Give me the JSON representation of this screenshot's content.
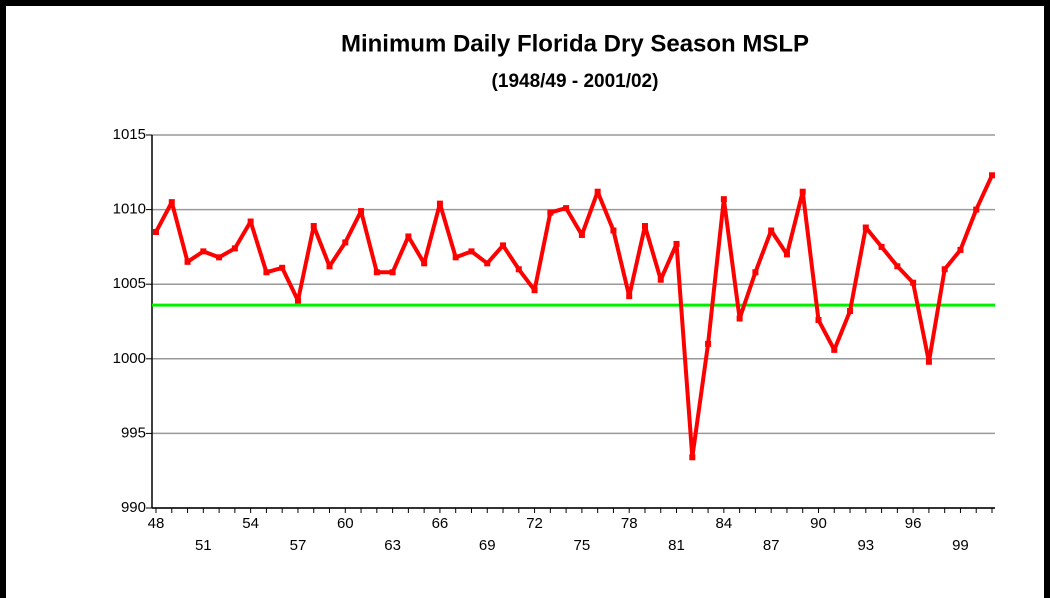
{
  "chart_data": {
    "type": "line",
    "title": "Minimum Daily Florida Dry Season MSLP",
    "subtitle": "(1948/49 - 2001/02)",
    "categories": [
      "48",
      null,
      null,
      "51",
      null,
      null,
      "54",
      null,
      null,
      "57",
      null,
      null,
      "60",
      null,
      null,
      "63",
      null,
      null,
      "66",
      null,
      null,
      "69",
      null,
      null,
      "72",
      null,
      null,
      "75",
      null,
      null,
      "78",
      null,
      null,
      "81",
      null,
      null,
      "84",
      null,
      null,
      "87",
      null,
      null,
      "90",
      null,
      null,
      "93",
      null,
      null,
      "96",
      null,
      null,
      "99",
      null,
      null
    ],
    "series": [
      {
        "color": "#ff0000",
        "values": [
          1008.5,
          1010.5,
          1006.5,
          1007.2,
          1006.8,
          1007.4,
          1009.2,
          1005.8,
          1006.1,
          1003.9,
          1008.9,
          1006.2,
          1007.8,
          1009.9,
          1005.8,
          1005.8,
          1008.2,
          1006.4,
          1010.4,
          1006.8,
          1007.2,
          1006.4,
          1007.6,
          1006.0,
          1004.6,
          1009.8,
          1010.1,
          1008.3,
          1011.2,
          1008.6,
          1004.2,
          1008.9,
          1005.3,
          1007.7,
          993.4,
          1001.0,
          1010.7,
          1002.7,
          1005.8,
          1008.6,
          1007.0,
          1011.2,
          1002.6,
          1000.6,
          1003.2,
          1008.8,
          1007.5,
          1006.2,
          1005.1,
          999.8,
          1006.0,
          1007.3,
          1010.0,
          1012.3
        ]
      }
    ],
    "reference_line": {
      "value": 1003.6,
      "color": "#00ee00"
    },
    "ylim": [
      990,
      1015
    ],
    "yticks": [
      990,
      995,
      1000,
      1005,
      1010,
      1015
    ],
    "grid": true
  }
}
